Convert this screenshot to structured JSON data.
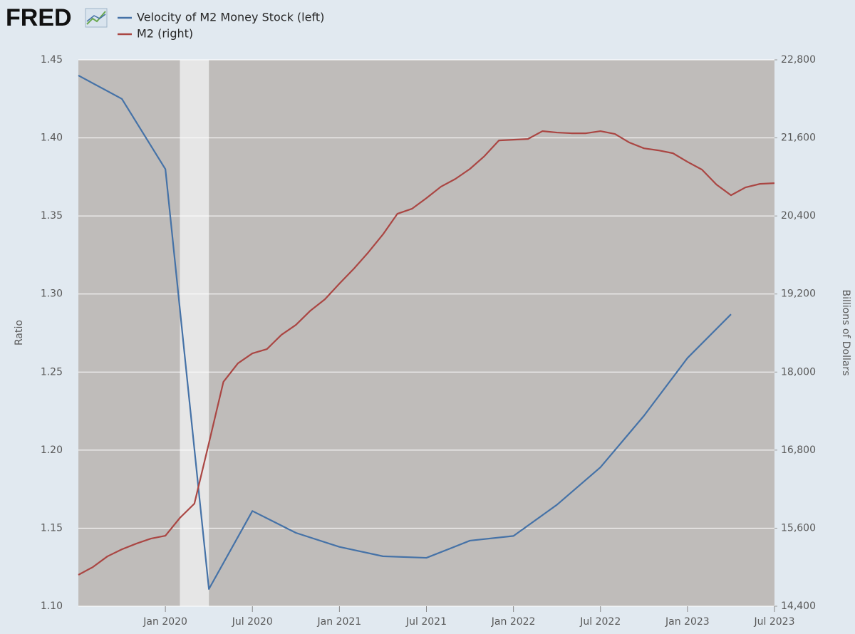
{
  "header": {
    "logo": "FRED"
  },
  "chart_data": {
    "type": "line",
    "ylabel": "Ratio",
    "y2label": "Billions of Dollars",
    "xlim": [
      "2019-07",
      "2023-07"
    ],
    "xticks": [
      {
        "value": "2020-01",
        "label": "Jan 2020"
      },
      {
        "value": "2020-07",
        "label": "Jul 2020"
      },
      {
        "value": "2021-01",
        "label": "Jan 2021"
      },
      {
        "value": "2021-07",
        "label": "Jul 2021"
      },
      {
        "value": "2022-01",
        "label": "Jan 2022"
      },
      {
        "value": "2022-07",
        "label": "Jul 2022"
      },
      {
        "value": "2023-01",
        "label": "Jan 2023"
      },
      {
        "value": "2023-07",
        "label": "Jul 2023"
      }
    ],
    "ylim": [
      1.1,
      1.45
    ],
    "yticks": [
      {
        "value": 1.1,
        "label": "1.10"
      },
      1.15,
      {
        "value": 1.2,
        "label": "1.20"
      },
      1.25,
      {
        "value": 1.3,
        "label": "1.30"
      },
      1.35,
      {
        "value": 1.4,
        "label": "1.40"
      },
      1.45
    ],
    "y2lim": [
      14400,
      22800
    ],
    "y2ticks": [
      {
        "value": 14400,
        "label": "14,400"
      },
      {
        "value": 15600,
        "label": "15,600"
      },
      {
        "value": 16800,
        "label": "16,800"
      },
      {
        "value": 18000,
        "label": "18,000"
      },
      {
        "value": 19200,
        "label": "19,200"
      },
      {
        "value": 20400,
        "label": "20,400"
      },
      {
        "value": 21600,
        "label": "21,600"
      },
      {
        "value": 22800,
        "label": "22,800"
      }
    ],
    "grid": true,
    "recession": [
      "2020-02",
      "2020-04"
    ],
    "series": [
      {
        "name": "Velocity of M2 Money Stock (left)",
        "color": "#4572a7",
        "axis": "y",
        "x": [
          "2019-07",
          "2019-10",
          "2020-01",
          "2020-04",
          "2020-07",
          "2020-10",
          "2021-01",
          "2021-04",
          "2021-07",
          "2021-10",
          "2022-01",
          "2022-04",
          "2022-07",
          "2022-10",
          "2023-01",
          "2023-04"
        ],
        "values": [
          1.44,
          1.425,
          1.38,
          1.111,
          1.161,
          1.147,
          1.138,
          1.132,
          1.131,
          1.142,
          1.145,
          1.165,
          1.189,
          1.222,
          1.259,
          1.287
        ]
      },
      {
        "name": "M2 (right)",
        "color": "#aa4643",
        "axis": "y2",
        "x": [
          "2019-07",
          "2019-08",
          "2019-09",
          "2019-10",
          "2019-11",
          "2019-12",
          "2020-01",
          "2020-02",
          "2020-03",
          "2020-04",
          "2020-05",
          "2020-06",
          "2020-07",
          "2020-08",
          "2020-09",
          "2020-10",
          "2020-11",
          "2020-12",
          "2021-01",
          "2021-02",
          "2021-03",
          "2021-04",
          "2021-05",
          "2021-06",
          "2021-07",
          "2021-08",
          "2021-09",
          "2021-10",
          "2021-11",
          "2021-12",
          "2022-01",
          "2022-02",
          "2022-03",
          "2022-04",
          "2022-05",
          "2022-06",
          "2022-07",
          "2022-08",
          "2022-09",
          "2022-10",
          "2022-11",
          "2022-12",
          "2023-01",
          "2023-02",
          "2023-03",
          "2023-04",
          "2023-05",
          "2023-06",
          "2023-07"
        ],
        "values": [
          14882,
          15002,
          15166,
          15275,
          15363,
          15440,
          15484,
          15758,
          15977,
          16907,
          17849,
          18134,
          18287,
          18353,
          18572,
          18725,
          18944,
          19119,
          19360,
          19590,
          19842,
          20116,
          20434,
          20510,
          20674,
          20850,
          20970,
          21123,
          21320,
          21561,
          21572,
          21583,
          21704,
          21682,
          21671,
          21671,
          21704,
          21660,
          21528,
          21440,
          21408,
          21364,
          21232,
          21112,
          20882,
          20718,
          20839,
          20893,
          20904
        ]
      }
    ]
  }
}
